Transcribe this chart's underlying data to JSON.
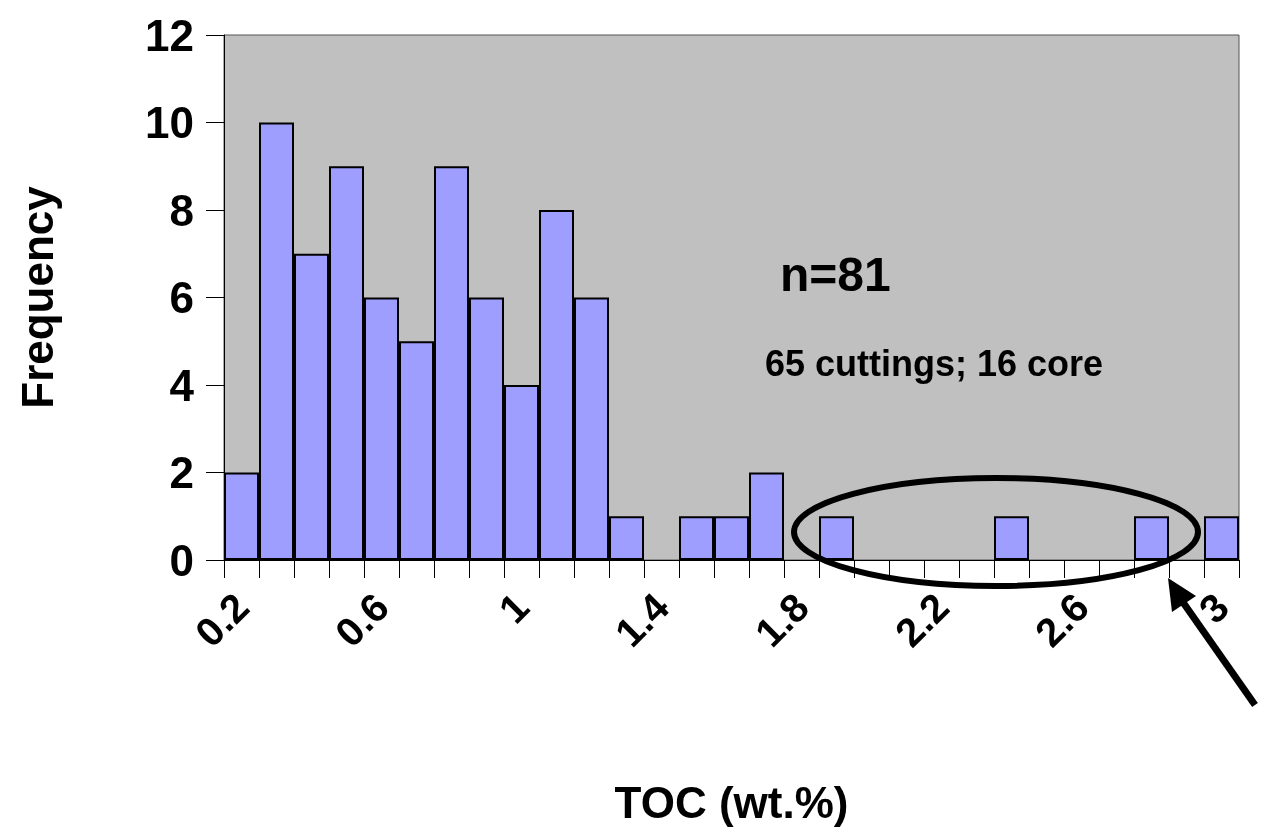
{
  "chart_data": {
    "type": "bar",
    "xlabel": "TOC (wt.%)",
    "ylabel": "Frequency",
    "categories": [
      "0.2",
      null,
      null,
      null,
      "0.6",
      null,
      null,
      null,
      "1",
      null,
      null,
      null,
      "1.4",
      null,
      null,
      null,
      "1.8",
      null,
      null,
      null,
      "2.2",
      null,
      null,
      null,
      "2.6",
      null,
      null,
      null,
      "3"
    ],
    "values": [
      2,
      10,
      7,
      9,
      6,
      5,
      9,
      6,
      4,
      8,
      6,
      1,
      0,
      1,
      1,
      2,
      0,
      1,
      0,
      0,
      0,
      0,
      1,
      0,
      0,
      0,
      1,
      0,
      1
    ],
    "color": "#9e9eff",
    "ylim": [
      0,
      12
    ],
    "yticks": [
      0,
      2,
      4,
      6,
      8,
      10,
      12
    ],
    "grid": false,
    "annotations": [
      "n=81",
      "65 cuttings; 16 core"
    ]
  }
}
